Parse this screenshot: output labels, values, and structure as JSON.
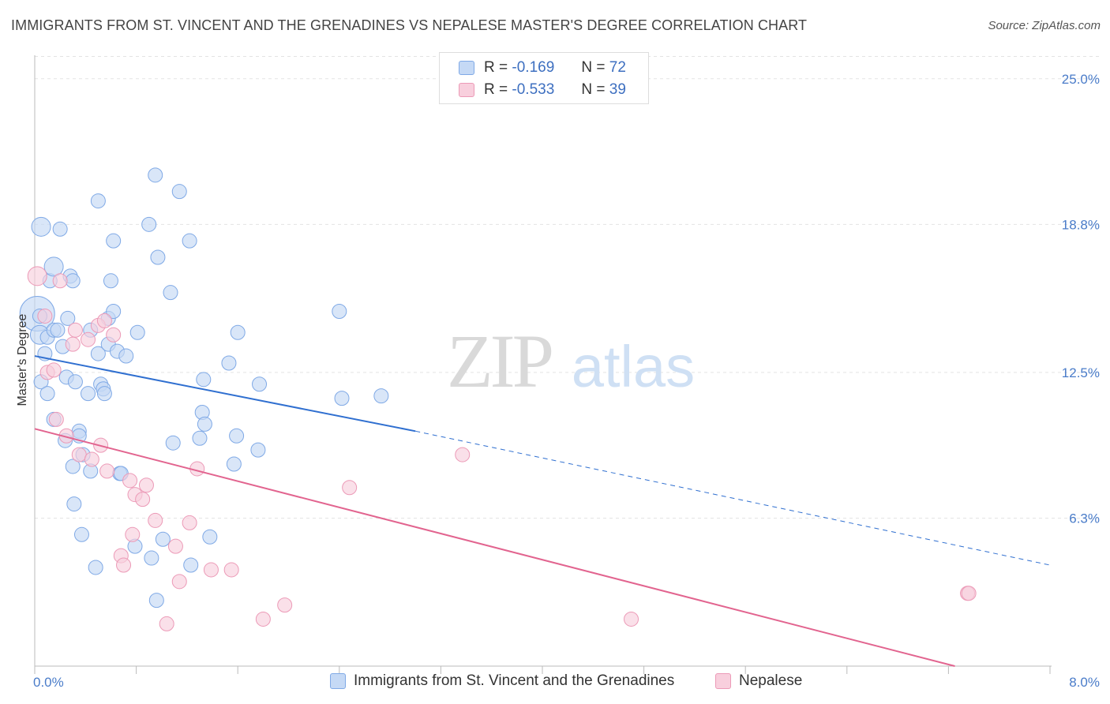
{
  "title": "IMMIGRANTS FROM ST. VINCENT AND THE GRENADINES VS NEPALESE MASTER'S DEGREE CORRELATION CHART",
  "source": "Source: ZipAtlas.com",
  "watermark": {
    "zip": "ZIP",
    "atlas": "atlas"
  },
  "colors": {
    "blue": "#7fa9e6",
    "blue_fill": "#c5d9f5",
    "blue_line": "#2f6fd0",
    "pink": "#ec9ab7",
    "pink_fill": "#f8cfdd",
    "pink_line": "#e2648f",
    "tick": "#4a7cc9",
    "grid": "#e3e3e3"
  },
  "legend": {
    "rows": [
      {
        "r_label": "R =",
        "r_value": "-0.169",
        "n_label": "N =",
        "n_value": "72"
      },
      {
        "r_label": "R =",
        "r_value": "-0.533",
        "n_label": "N =",
        "n_value": "39"
      }
    ]
  },
  "bottom_legend": {
    "series1": "Immigrants from St. Vincent and the Grenadines",
    "series2": "Nepalese"
  },
  "chart_data": {
    "type": "scatter",
    "title": "IMMIGRANTS FROM ST. VINCENT AND THE GRENADINES VS NEPALESE MASTER'S DEGREE CORRELATION CHART",
    "xlabel": "",
    "ylabel": "Master's Degree",
    "xlim": [
      0,
      8.0
    ],
    "ylim": [
      0,
      26.0
    ],
    "x_tick_labels": [
      "0.0%",
      "8.0%"
    ],
    "y_ticks": [
      6.3,
      12.5,
      18.8,
      25.0
    ],
    "y_tick_labels": [
      "6.3%",
      "12.5%",
      "18.8%",
      "25.0%"
    ],
    "grid": true,
    "series": [
      {
        "name": "Immigrants from St. Vincent and the Grenadines",
        "color": "#7fa9e6",
        "trend": {
          "x0": 0.0,
          "y0": 13.2,
          "x1": 3.0,
          "y1": 10.0,
          "x_ext": 8.0,
          "y_ext": 4.3
        },
        "points": [
          {
            "x": 0.02,
            "y": 15.0,
            "s": 22
          },
          {
            "x": 0.04,
            "y": 14.1,
            "s": 12
          },
          {
            "x": 0.05,
            "y": 18.7,
            "s": 12
          },
          {
            "x": 0.05,
            "y": 12.1,
            "s": 9
          },
          {
            "x": 0.08,
            "y": 13.3,
            "s": 9
          },
          {
            "x": 0.1,
            "y": 14.0,
            "s": 9
          },
          {
            "x": 0.1,
            "y": 11.6,
            "s": 9
          },
          {
            "x": 0.12,
            "y": 16.4,
            "s": 9
          },
          {
            "x": 0.15,
            "y": 14.3,
            "s": 9
          },
          {
            "x": 0.15,
            "y": 17.0,
            "s": 12
          },
          {
            "x": 0.15,
            "y": 10.5,
            "s": 9
          },
          {
            "x": 0.18,
            "y": 14.3,
            "s": 9
          },
          {
            "x": 0.2,
            "y": 18.6,
            "s": 9
          },
          {
            "x": 0.22,
            "y": 13.6,
            "s": 9
          },
          {
            "x": 0.24,
            "y": 9.6,
            "s": 9
          },
          {
            "x": 0.25,
            "y": 12.3,
            "s": 9
          },
          {
            "x": 0.26,
            "y": 14.8,
            "s": 9
          },
          {
            "x": 0.28,
            "y": 16.6,
            "s": 9
          },
          {
            "x": 0.3,
            "y": 16.4,
            "s": 9
          },
          {
            "x": 0.3,
            "y": 8.5,
            "s": 9
          },
          {
            "x": 0.31,
            "y": 6.9,
            "s": 9
          },
          {
            "x": 0.32,
            "y": 12.1,
            "s": 9
          },
          {
            "x": 0.35,
            "y": 10.0,
            "s": 9
          },
          {
            "x": 0.35,
            "y": 9.8,
            "s": 9
          },
          {
            "x": 0.37,
            "y": 5.6,
            "s": 9
          },
          {
            "x": 0.38,
            "y": 9.0,
            "s": 9
          },
          {
            "x": 0.42,
            "y": 11.6,
            "s": 9
          },
          {
            "x": 0.44,
            "y": 14.3,
            "s": 9
          },
          {
            "x": 0.44,
            "y": 8.3,
            "s": 9
          },
          {
            "x": 0.48,
            "y": 4.2,
            "s": 9
          },
          {
            "x": 0.5,
            "y": 13.3,
            "s": 9
          },
          {
            "x": 0.5,
            "y": 19.8,
            "s": 9
          },
          {
            "x": 0.52,
            "y": 12.0,
            "s": 9
          },
          {
            "x": 0.54,
            "y": 11.8,
            "s": 9
          },
          {
            "x": 0.55,
            "y": 11.6,
            "s": 9
          },
          {
            "x": 0.58,
            "y": 13.7,
            "s": 9
          },
          {
            "x": 0.58,
            "y": 14.8,
            "s": 9
          },
          {
            "x": 0.6,
            "y": 16.4,
            "s": 9
          },
          {
            "x": 0.62,
            "y": 15.1,
            "s": 9
          },
          {
            "x": 0.62,
            "y": 18.1,
            "s": 9
          },
          {
            "x": 0.65,
            "y": 13.4,
            "s": 9
          },
          {
            "x": 0.67,
            "y": 8.2,
            "s": 9
          },
          {
            "x": 0.72,
            "y": 13.2,
            "s": 9
          },
          {
            "x": 0.79,
            "y": 5.1,
            "s": 9
          },
          {
            "x": 0.81,
            "y": 14.2,
            "s": 9
          },
          {
            "x": 0.9,
            "y": 18.8,
            "s": 9
          },
          {
            "x": 0.92,
            "y": 4.6,
            "s": 9
          },
          {
            "x": 0.95,
            "y": 20.9,
            "s": 9
          },
          {
            "x": 0.96,
            "y": 2.8,
            "s": 9
          },
          {
            "x": 0.97,
            "y": 17.4,
            "s": 9
          },
          {
            "x": 1.01,
            "y": 5.4,
            "s": 9
          },
          {
            "x": 1.07,
            "y": 15.9,
            "s": 9
          },
          {
            "x": 1.09,
            "y": 9.5,
            "s": 9
          },
          {
            "x": 1.14,
            "y": 20.2,
            "s": 9
          },
          {
            "x": 1.22,
            "y": 18.1,
            "s": 9
          },
          {
            "x": 1.23,
            "y": 4.3,
            "s": 9
          },
          {
            "x": 1.3,
            "y": 9.7,
            "s": 9
          },
          {
            "x": 1.32,
            "y": 10.8,
            "s": 9
          },
          {
            "x": 1.33,
            "y": 12.2,
            "s": 9
          },
          {
            "x": 1.34,
            "y": 10.3,
            "s": 9
          },
          {
            "x": 1.38,
            "y": 5.5,
            "s": 9
          },
          {
            "x": 1.53,
            "y": 12.9,
            "s": 9
          },
          {
            "x": 1.57,
            "y": 8.6,
            "s": 9
          },
          {
            "x": 1.59,
            "y": 9.8,
            "s": 9
          },
          {
            "x": 1.6,
            "y": 14.2,
            "s": 9
          },
          {
            "x": 1.77,
            "y": 12.0,
            "s": 9
          },
          {
            "x": 1.76,
            "y": 9.2,
            "s": 9
          },
          {
            "x": 2.4,
            "y": 15.1,
            "s": 9
          },
          {
            "x": 2.42,
            "y": 11.4,
            "s": 9
          },
          {
            "x": 2.73,
            "y": 11.5,
            "s": 9
          },
          {
            "x": 0.04,
            "y": 14.9,
            "s": 9
          },
          {
            "x": 0.68,
            "y": 8.2,
            "s": 9
          }
        ]
      },
      {
        "name": "Nepalese",
        "color": "#ec9ab7",
        "trend": {
          "x0": 0.0,
          "y0": 10.1,
          "x1": 7.25,
          "y1": 0.0
        },
        "points": [
          {
            "x": 0.02,
            "y": 16.6,
            "s": 12
          },
          {
            "x": 0.08,
            "y": 14.9,
            "s": 9
          },
          {
            "x": 0.1,
            "y": 12.5,
            "s": 9
          },
          {
            "x": 0.15,
            "y": 12.6,
            "s": 9
          },
          {
            "x": 0.17,
            "y": 10.5,
            "s": 9
          },
          {
            "x": 0.2,
            "y": 16.4,
            "s": 9
          },
          {
            "x": 0.25,
            "y": 9.8,
            "s": 9
          },
          {
            "x": 0.3,
            "y": 13.7,
            "s": 9
          },
          {
            "x": 0.32,
            "y": 14.3,
            "s": 9
          },
          {
            "x": 0.35,
            "y": 9.0,
            "s": 9
          },
          {
            "x": 0.42,
            "y": 13.9,
            "s": 9
          },
          {
            "x": 0.45,
            "y": 8.8,
            "s": 9
          },
          {
            "x": 0.5,
            "y": 14.5,
            "s": 9
          },
          {
            "x": 0.52,
            "y": 9.4,
            "s": 9
          },
          {
            "x": 0.55,
            "y": 14.7,
            "s": 9
          },
          {
            "x": 0.57,
            "y": 8.3,
            "s": 9
          },
          {
            "x": 0.62,
            "y": 14.1,
            "s": 9
          },
          {
            "x": 0.68,
            "y": 4.7,
            "s": 9
          },
          {
            "x": 0.7,
            "y": 4.3,
            "s": 9
          },
          {
            "x": 0.75,
            "y": 7.9,
            "s": 9
          },
          {
            "x": 0.77,
            "y": 5.6,
            "s": 9
          },
          {
            "x": 0.79,
            "y": 7.3,
            "s": 9
          },
          {
            "x": 0.85,
            "y": 7.1,
            "s": 9
          },
          {
            "x": 0.88,
            "y": 7.7,
            "s": 9
          },
          {
            "x": 0.95,
            "y": 6.2,
            "s": 9
          },
          {
            "x": 1.04,
            "y": 1.8,
            "s": 9
          },
          {
            "x": 1.11,
            "y": 5.1,
            "s": 9
          },
          {
            "x": 1.14,
            "y": 3.6,
            "s": 9
          },
          {
            "x": 1.22,
            "y": 6.1,
            "s": 9
          },
          {
            "x": 1.28,
            "y": 8.4,
            "s": 9
          },
          {
            "x": 1.39,
            "y": 4.1,
            "s": 9
          },
          {
            "x": 1.55,
            "y": 4.1,
            "s": 9
          },
          {
            "x": 1.8,
            "y": 2.0,
            "s": 9
          },
          {
            "x": 1.97,
            "y": 2.6,
            "s": 9
          },
          {
            "x": 2.48,
            "y": 7.6,
            "s": 9
          },
          {
            "x": 3.37,
            "y": 9.0,
            "s": 9
          },
          {
            "x": 4.7,
            "y": 2.0,
            "s": 9
          },
          {
            "x": 7.35,
            "y": 3.1,
            "s": 9
          },
          {
            "x": 7.36,
            "y": 3.1,
            "s": 9
          }
        ]
      }
    ]
  }
}
